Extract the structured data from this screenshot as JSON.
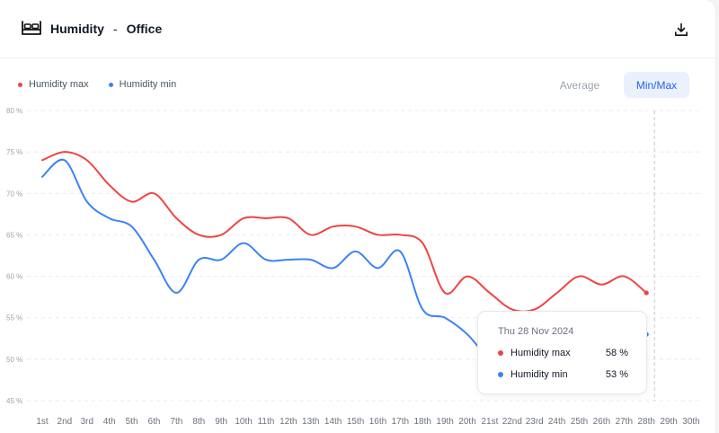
{
  "header": {
    "title": "Humidity",
    "separator": "-",
    "room": "Office",
    "icon": "bed-icon",
    "download_icon": "download-icon"
  },
  "toggle": {
    "average_label": "Average",
    "minmax_label": "Min/Max",
    "selected": "Min/Max"
  },
  "tooltip": {
    "date": "Thu 28 Nov 2024",
    "rows": [
      {
        "label": "Humidity max",
        "value": "58 %",
        "color": "#ef4444"
      },
      {
        "label": "Humidity min",
        "value": "53 %",
        "color": "#3b82f6"
      }
    ]
  },
  "chart_data": {
    "type": "line",
    "x": [
      "1st",
      "2nd",
      "3rd",
      "4th",
      "5th",
      "6th",
      "7th",
      "8th",
      "9th",
      "10th",
      "11th",
      "12th",
      "13th",
      "14th",
      "15th",
      "16th",
      "17th",
      "18th",
      "19th",
      "20th",
      "21st",
      "22nd",
      "23rd",
      "24th",
      "25th",
      "26th",
      "27th",
      "28th",
      "29th",
      "30th"
    ],
    "series": [
      {
        "name": "Humidity max",
        "color": "#ef4444",
        "values": [
          74,
          75,
          74,
          71,
          69,
          70,
          67,
          65,
          65,
          67,
          67,
          67,
          65,
          66,
          66,
          65,
          65,
          64,
          58,
          60,
          58,
          56,
          56,
          58,
          60,
          59,
          60,
          58,
          null,
          null
        ]
      },
      {
        "name": "Humidity min",
        "color": "#3b82f6",
        "values": [
          72,
          74,
          69,
          67,
          66,
          62,
          58,
          62,
          62,
          64,
          62,
          62,
          62,
          61,
          63,
          61,
          63,
          56,
          55,
          53,
          50,
          49,
          49,
          50,
          51,
          52,
          52,
          53,
          null,
          null
        ]
      }
    ],
    "yticks": [
      "80 %",
      "75 %",
      "70 %",
      "65 %",
      "60 %",
      "55 %",
      "50 %",
      "45 %"
    ],
    "ylim": [
      45,
      80
    ],
    "y_unit": "%",
    "grid": true,
    "legend": "top-left",
    "highlight_index": 27,
    "xlabel": "",
    "ylabel": ""
  }
}
